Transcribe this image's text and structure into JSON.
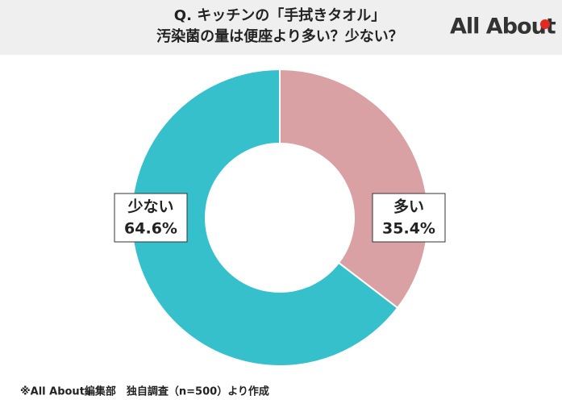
{
  "chart_data": {
    "type": "donut",
    "title": [
      "Q. キッチンの「手拭きタオル」",
      "汚染菌の量は便座より多い？少ない？"
    ],
    "logo": "All About",
    "categories": [
      "多い",
      "少ない"
    ],
    "values": [
      35.4,
      64.6
    ],
    "value_labels": [
      "35.4%",
      "64.6%"
    ],
    "colors": [
      "#d9a1a3",
      "#35c0cc"
    ],
    "note": "※All About編集部　独自調査（n=500）より作成"
  }
}
